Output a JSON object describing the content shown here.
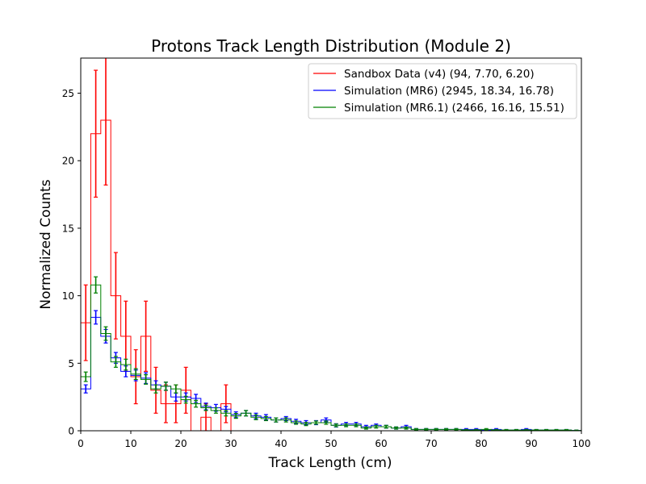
{
  "chart_data": {
    "type": "histogram",
    "title": "Protons Track Length Distribution (Module 2)",
    "xlabel": "Track Length (cm)",
    "ylabel": "Normalized Counts",
    "xlim": [
      0,
      100
    ],
    "ylim": [
      0,
      27.6
    ],
    "bin_width": 2,
    "xticks": [
      0,
      10,
      20,
      30,
      40,
      50,
      60,
      70,
      80,
      90,
      100
    ],
    "yticks": [
      0,
      5,
      10,
      15,
      20,
      25
    ],
    "grid": false,
    "legend_position": "top-right",
    "series": [
      {
        "name": "Sandbox Data (v4) (94, 7.70, 6.20)",
        "color": "#ff0000",
        "values": [
          8,
          22,
          23,
          10,
          7,
          4,
          7,
          3,
          2,
          2,
          3,
          0,
          1,
          0,
          2,
          0,
          0,
          0,
          0,
          0,
          0,
          0,
          0,
          0,
          0,
          0,
          0,
          0,
          0,
          0,
          0,
          0,
          0,
          0,
          0,
          0,
          0,
          0,
          0,
          0,
          0,
          0,
          0,
          0,
          0,
          0,
          0,
          0,
          0,
          0
        ],
        "errors": [
          2.8,
          4.7,
          4.8,
          3.2,
          2.6,
          2.0,
          2.6,
          1.7,
          1.4,
          1.4,
          1.7,
          0,
          1.0,
          0,
          1.4,
          0,
          0,
          0,
          0,
          0,
          0,
          0,
          0,
          0,
          0,
          0,
          0,
          0,
          0,
          0,
          0,
          0,
          0,
          0,
          0,
          0,
          0,
          0,
          0,
          0,
          0,
          0,
          0,
          0,
          0,
          0,
          0,
          0,
          0,
          0
        ]
      },
      {
        "name": "Simulation (MR6) (2945, 18.34, 16.78)",
        "color": "#0000ff",
        "values": [
          3.1,
          8.4,
          7.0,
          5.4,
          4.4,
          4.1,
          3.9,
          3.4,
          3.3,
          2.5,
          2.5,
          2.4,
          1.8,
          1.7,
          1.6,
          1.2,
          1.3,
          1.1,
          1.0,
          0.8,
          0.9,
          0.7,
          0.6,
          0.6,
          0.8,
          0.4,
          0.5,
          0.5,
          0.3,
          0.4,
          0.3,
          0.2,
          0.3,
          0.1,
          0.1,
          0.1,
          0.1,
          0.1,
          0.1,
          0.1,
          0.05,
          0.1,
          0.05,
          0.05,
          0.1,
          0.05,
          0.05,
          0.05,
          0.05,
          0.02
        ],
        "errors": [
          0.3,
          0.5,
          0.5,
          0.4,
          0.4,
          0.4,
          0.4,
          0.3,
          0.3,
          0.3,
          0.3,
          0.3,
          0.25,
          0.25,
          0.2,
          0.2,
          0.2,
          0.2,
          0.2,
          0.15,
          0.15,
          0.15,
          0.15,
          0.15,
          0.15,
          0.12,
          0.12,
          0.12,
          0.1,
          0.1,
          0.1,
          0.08,
          0.1,
          0.06,
          0.06,
          0.06,
          0.06,
          0.06,
          0.06,
          0.06,
          0.04,
          0.06,
          0.04,
          0.04,
          0.06,
          0.04,
          0.04,
          0.04,
          0.04,
          0.03
        ]
      },
      {
        "name": "Simulation (MR6.1) (2466, 16.16, 15.51)",
        "color": "#008000",
        "values": [
          4.0,
          10.8,
          7.2,
          5.1,
          4.9,
          4.2,
          3.8,
          3.1,
          3.3,
          3.1,
          2.3,
          2.0,
          1.7,
          1.5,
          1.3,
          1.1,
          1.3,
          1.0,
          0.9,
          0.8,
          0.8,
          0.6,
          0.5,
          0.6,
          0.6,
          0.4,
          0.4,
          0.4,
          0.2,
          0.3,
          0.3,
          0.2,
          0.2,
          0.1,
          0.1,
          0.1,
          0.1,
          0.1,
          0.05,
          0.05,
          0.1,
          0.05,
          0.05,
          0.05,
          0.05,
          0.05,
          0.05,
          0.05,
          0.05,
          0.02
        ],
        "errors": [
          0.35,
          0.6,
          0.5,
          0.4,
          0.4,
          0.4,
          0.35,
          0.3,
          0.3,
          0.3,
          0.25,
          0.25,
          0.2,
          0.2,
          0.2,
          0.18,
          0.2,
          0.18,
          0.15,
          0.15,
          0.15,
          0.12,
          0.12,
          0.12,
          0.12,
          0.1,
          0.1,
          0.1,
          0.08,
          0.1,
          0.1,
          0.08,
          0.08,
          0.06,
          0.06,
          0.06,
          0.06,
          0.06,
          0.04,
          0.04,
          0.06,
          0.04,
          0.04,
          0.04,
          0.04,
          0.04,
          0.04,
          0.04,
          0.04,
          0.03
        ]
      }
    ]
  }
}
